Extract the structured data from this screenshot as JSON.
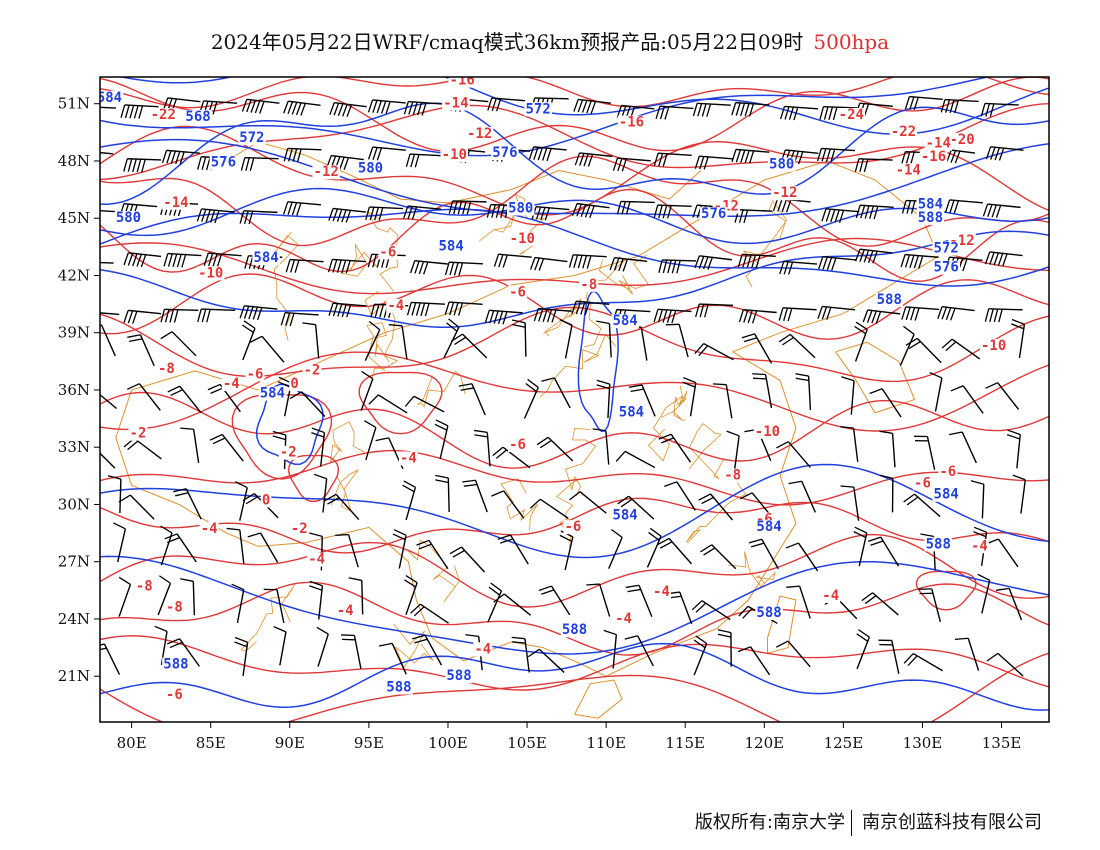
{
  "title": {
    "main": "2024年05月22日WRF/cmaq模式36km预报产品:05月22日09时",
    "level": "500hpa"
  },
  "axes": {
    "x_ticks": [
      "80E",
      "85E",
      "90E",
      "95E",
      "100E",
      "105E",
      "110E",
      "115E",
      "120E",
      "125E",
      "130E",
      "135E"
    ],
    "y_ticks": [
      "51N",
      "48N",
      "45N",
      "42N",
      "39N",
      "36N",
      "33N",
      "30N",
      "27N",
      "24N",
      "21N"
    ]
  },
  "colors": {
    "height_contour": "#2040e0",
    "temperature_contour": "#e03838",
    "borders": "#e0902a",
    "wind_barb": "#000000"
  },
  "height_labels": [
    {
      "text": "584",
      "lon": 78.6,
      "lat": 51.1
    },
    {
      "text": "568",
      "lon": 84.2,
      "lat": 50.1
    },
    {
      "text": "572",
      "lon": 87.6,
      "lat": 49.0
    },
    {
      "text": "576",
      "lon": 85.8,
      "lat": 47.7
    },
    {
      "text": "580",
      "lon": 95.1,
      "lat": 47.4
    },
    {
      "text": "576",
      "lon": 103.6,
      "lat": 48.2
    },
    {
      "text": "572",
      "lon": 105.7,
      "lat": 50.5
    },
    {
      "text": "580",
      "lon": 79.8,
      "lat": 44.8
    },
    {
      "text": "580",
      "lon": 104.6,
      "lat": 45.3
    },
    {
      "text": "576",
      "lon": 116.8,
      "lat": 45.0
    },
    {
      "text": "584",
      "lon": 88.5,
      "lat": 42.7
    },
    {
      "text": "584",
      "lon": 100.2,
      "lat": 43.3
    },
    {
      "text": "584",
      "lon": 111.2,
      "lat": 39.4
    },
    {
      "text": "584",
      "lon": 88.9,
      "lat": 35.6
    },
    {
      "text": "584",
      "lon": 111.6,
      "lat": 34.6
    },
    {
      "text": "580",
      "lon": 121.1,
      "lat": 47.6
    },
    {
      "text": "584",
      "lon": 130.5,
      "lat": 45.5
    },
    {
      "text": "588",
      "lon": 130.5,
      "lat": 44.8
    },
    {
      "text": "572",
      "lon": 131.5,
      "lat": 43.2
    },
    {
      "text": "576",
      "lon": 131.5,
      "lat": 42.2
    },
    {
      "text": "588",
      "lon": 127.9,
      "lat": 40.5
    },
    {
      "text": "584",
      "lon": 131.5,
      "lat": 30.3
    },
    {
      "text": "584",
      "lon": 111.2,
      "lat": 29.2
    },
    {
      "text": "584",
      "lon": 120.3,
      "lat": 28.6
    },
    {
      "text": "588",
      "lon": 131.0,
      "lat": 27.7
    },
    {
      "text": "588",
      "lon": 120.3,
      "lat": 24.1
    },
    {
      "text": "588",
      "lon": 108.0,
      "lat": 23.2
    },
    {
      "text": "588",
      "lon": 82.8,
      "lat": 21.4
    },
    {
      "text": "588",
      "lon": 96.9,
      "lat": 20.2
    },
    {
      "text": "588",
      "lon": 100.7,
      "lat": 20.8
    }
  ],
  "temperature_labels": [
    {
      "text": "-16",
      "lon": 100.9,
      "lat": 52.0
    },
    {
      "text": "-14",
      "lon": 100.5,
      "lat": 50.8
    },
    {
      "text": "-22",
      "lon": 82.0,
      "lat": 50.2
    },
    {
      "text": "-12",
      "lon": 102.0,
      "lat": 49.2
    },
    {
      "text": "-10",
      "lon": 100.4,
      "lat": 48.1
    },
    {
      "text": "-16",
      "lon": 111.6,
      "lat": 49.8
    },
    {
      "text": "-12",
      "lon": 92.3,
      "lat": 47.2
    },
    {
      "text": "-14",
      "lon": 82.8,
      "lat": 45.6
    },
    {
      "text": "-10",
      "lon": 104.7,
      "lat": 43.7
    },
    {
      "text": "-12",
      "lon": 117.6,
      "lat": 45.4
    },
    {
      "text": "-12",
      "lon": 121.3,
      "lat": 46.1
    },
    {
      "text": "-24",
      "lon": 125.5,
      "lat": 50.2
    },
    {
      "text": "-22",
      "lon": 128.8,
      "lat": 49.3
    },
    {
      "text": "-20",
      "lon": 132.5,
      "lat": 48.9
    },
    {
      "text": "-14",
      "lon": 131.0,
      "lat": 48.7
    },
    {
      "text": "-16",
      "lon": 130.7,
      "lat": 48.0
    },
    {
      "text": "-14",
      "lon": 129.1,
      "lat": 47.3
    },
    {
      "text": "-12",
      "lon": 132.5,
      "lat": 43.6
    },
    {
      "text": "-6",
      "lon": 96.2,
      "lat": 43.0
    },
    {
      "text": "-10",
      "lon": 85.0,
      "lat": 41.9
    },
    {
      "text": "-8",
      "lon": 108.9,
      "lat": 41.3
    },
    {
      "text": "-6",
      "lon": 104.4,
      "lat": 40.9
    },
    {
      "text": "-4",
      "lon": 96.7,
      "lat": 40.2
    },
    {
      "text": "-8",
      "lon": 82.2,
      "lat": 36.9
    },
    {
      "text": "-6",
      "lon": 87.8,
      "lat": 36.6
    },
    {
      "text": "-4",
      "lon": 86.3,
      "lat": 36.1
    },
    {
      "text": "-2",
      "lon": 91.4,
      "lat": 36.8
    },
    {
      "text": "0",
      "lon": 90.3,
      "lat": 36.1
    },
    {
      "text": "-2",
      "lon": 80.4,
      "lat": 33.5
    },
    {
      "text": "-2",
      "lon": 89.9,
      "lat": 32.5
    },
    {
      "text": "0",
      "lon": 88.5,
      "lat": 30.0
    },
    {
      "text": "-4",
      "lon": 97.5,
      "lat": 32.2
    },
    {
      "text": "-6",
      "lon": 104.4,
      "lat": 32.9
    },
    {
      "text": "-10",
      "lon": 120.2,
      "lat": 33.6
    },
    {
      "text": "-8",
      "lon": 118.0,
      "lat": 31.3
    },
    {
      "text": "-6",
      "lon": 131.6,
      "lat": 31.5
    },
    {
      "text": "-6",
      "lon": 130.0,
      "lat": 30.9
    },
    {
      "text": "-2",
      "lon": 90.6,
      "lat": 28.5
    },
    {
      "text": "-4",
      "lon": 84.9,
      "lat": 28.5
    },
    {
      "text": "-6",
      "lon": 107.9,
      "lat": 28.6
    },
    {
      "text": "-6",
      "lon": 120.0,
      "lat": 29.0
    },
    {
      "text": "-4",
      "lon": 91.7,
      "lat": 26.9
    },
    {
      "text": "-8",
      "lon": 80.8,
      "lat": 25.5
    },
    {
      "text": "-8",
      "lon": 82.7,
      "lat": 24.4
    },
    {
      "text": "-4",
      "lon": 93.5,
      "lat": 24.2
    },
    {
      "text": "-4",
      "lon": 113.5,
      "lat": 25.2
    },
    {
      "text": "-4",
      "lon": 111.1,
      "lat": 23.8
    },
    {
      "text": "-4",
      "lon": 102.2,
      "lat": 22.2
    },
    {
      "text": "-4",
      "lon": 124.2,
      "lat": 25.0
    },
    {
      "text": "-4",
      "lon": 133.6,
      "lat": 27.6
    },
    {
      "text": "-10",
      "lon": 134.5,
      "lat": 38.1
    },
    {
      "text": "-6",
      "lon": 82.7,
      "lat": 19.8
    }
  ],
  "footer": {
    "left": "版权所有:南京大学",
    "right": "南京创蓝科技有限公司"
  }
}
